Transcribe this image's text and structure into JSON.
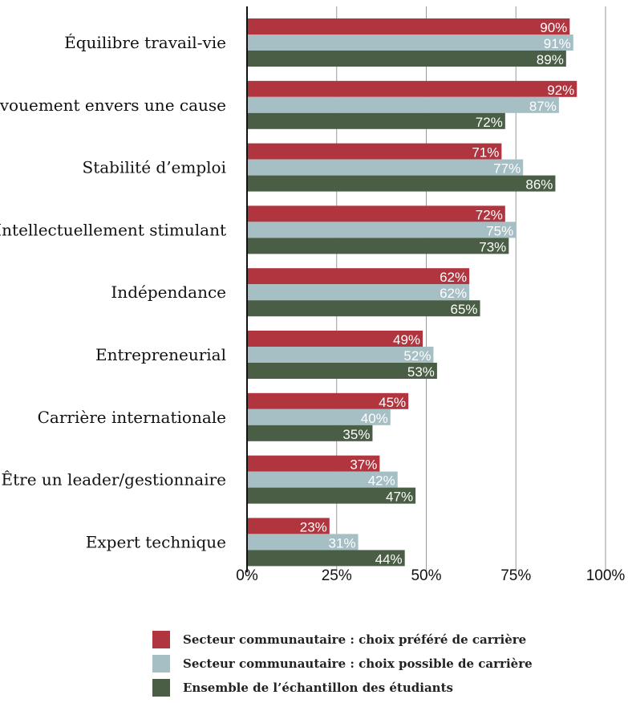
{
  "chart_data": {
    "type": "bar",
    "orientation": "horizontal",
    "categories": [
      "Équilibre travail-vie",
      "Dévouement envers une cause",
      "Stabilité d’emploi",
      "Intellectuellement stimulant",
      "Indépendance",
      "Entrepreneurial",
      "Carrière internationale",
      "Être un leader/gestionnaire",
      "Expert technique"
    ],
    "series": [
      {
        "name": "Secteur communautaire : choix préféré de carrière",
        "color": "#b0353e",
        "values": [
          90,
          92,
          71,
          72,
          62,
          49,
          45,
          37,
          23
        ],
        "labels": [
          "90%",
          "92%",
          "71%",
          "72%",
          "62%",
          "49%",
          "45%",
          "37%",
          "23%"
        ]
      },
      {
        "name": "Secteur communautaire : choix possible de carrière",
        "color": "#a6bfc5",
        "values": [
          91,
          87,
          77,
          75,
          62,
          52,
          40,
          42,
          31
        ],
        "labels": [
          "91%",
          "87%",
          "77%",
          "75%",
          "62%",
          "52%",
          "40%",
          "42%",
          "31%"
        ]
      },
      {
        "name": "Ensemble de l’échantillon des étudiants",
        "color": "#4a5e46",
        "values": [
          89,
          72,
          86,
          73,
          65,
          53,
          35,
          47,
          44
        ],
        "labels": [
          "89%",
          "72%",
          "86%",
          "73%",
          "65%",
          "53%",
          "35%",
          "47%",
          "44%"
        ]
      }
    ],
    "xlim": [
      0,
      100
    ],
    "xticks": [
      0,
      25,
      50,
      75,
      100
    ],
    "xtick_labels": [
      "0%",
      "25%",
      "50%",
      "75%",
      "100%"
    ],
    "grid": true,
    "legend_position": "bottom"
  }
}
